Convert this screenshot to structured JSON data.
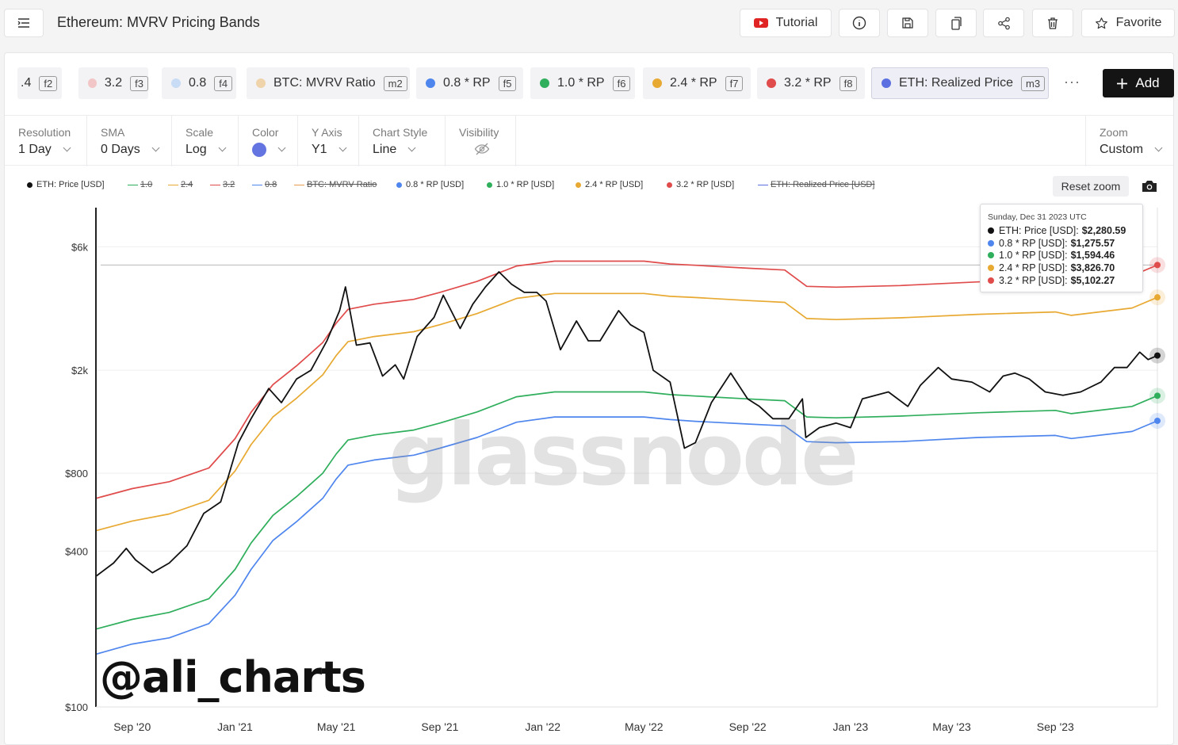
{
  "header": {
    "title": "Ethereum: MVRV Pricing Bands",
    "tutorial_label": "Tutorial",
    "favorite_label": "Favorite"
  },
  "metric_chips": [
    {
      "label": ".4",
      "key": "f2",
      "color": ""
    },
    {
      "label": "3.2",
      "key": "f3",
      "color": "#f2c6c6"
    },
    {
      "label": "0.8",
      "key": "f4",
      "color": "#c9dcf5"
    },
    {
      "label": "BTC: MVRV Ratio",
      "key": "m2",
      "color": "#efd3ab"
    },
    {
      "label": "0.8 * RP",
      "key": "f5",
      "color": "#4f86ee"
    },
    {
      "label": "1.0 * RP",
      "key": "f6",
      "color": "#2fae5c"
    },
    {
      "label": "2.4 * RP",
      "key": "f7",
      "color": "#e8a932"
    },
    {
      "label": "3.2 * RP",
      "key": "f8",
      "color": "#e04b4b"
    },
    {
      "label": "ETH: Realized Price",
      "key": "m3",
      "color": "#5c6fe0"
    }
  ],
  "more_label": "···",
  "add_label": "Add",
  "controls": {
    "resolution": {
      "label": "Resolution",
      "value": "1 Day"
    },
    "sma": {
      "label": "SMA",
      "value": "0 Days"
    },
    "scale": {
      "label": "Scale",
      "value": "Log"
    },
    "color": {
      "label": "Color",
      "value": "#6474e0"
    },
    "yaxis": {
      "label": "Y Axis",
      "value": "Y1"
    },
    "chart_style": {
      "label": "Chart Style",
      "value": "Line"
    },
    "visibility": {
      "label": "Visibility"
    },
    "zoom": {
      "label": "Zoom",
      "value": "Custom"
    }
  },
  "legend": [
    {
      "label": "ETH: Price [USD]",
      "color": "#111111",
      "enabled": true
    },
    {
      "label": "1.0",
      "color": "#2fae5c",
      "enabled": false
    },
    {
      "label": "2.4",
      "color": "#e8a932",
      "enabled": false
    },
    {
      "label": "3.2",
      "color": "#e04b4b",
      "enabled": false
    },
    {
      "label": "0.8",
      "color": "#4f86ee",
      "enabled": false
    },
    {
      "label": "BTC: MVRV Ratio",
      "color": "#e8a050",
      "enabled": false
    },
    {
      "label": "0.8 * RP [USD]",
      "color": "#4f86ee",
      "enabled": true
    },
    {
      "label": "1.0 * RP [USD]",
      "color": "#2fae5c",
      "enabled": true
    },
    {
      "label": "2.4 * RP [USD]",
      "color": "#e8a932",
      "enabled": true
    },
    {
      "label": "3.2 * RP [USD]",
      "color": "#e04b4b",
      "enabled": true
    },
    {
      "label": "ETH: Realized Price [USD]",
      "color": "#5c6fe0",
      "enabled": false
    }
  ],
  "reset_zoom_label": "Reset zoom",
  "tooltip": {
    "date": "Sunday, Dec 31 2023 UTC",
    "rows": [
      {
        "name": "ETH: Price [USD]:",
        "value": "$2,280.59",
        "color": "#111111"
      },
      {
        "name": "0.8 * RP [USD]:",
        "value": "$1,275.57",
        "color": "#4f86ee"
      },
      {
        "name": "1.0 * RP [USD]:",
        "value": "$1,594.46",
        "color": "#2fae5c"
      },
      {
        "name": "2.4 * RP [USD]:",
        "value": "$3,826.70",
        "color": "#e8a932"
      },
      {
        "name": "3.2 * RP [USD]:",
        "value": "$5,102.27",
        "color": "#e04b4b"
      }
    ]
  },
  "watermark": "glassnode",
  "handle": "@ali_charts",
  "chart_data": {
    "type": "line",
    "scale": "log",
    "ylim": [
      100,
      8500
    ],
    "y_ticks": [
      {
        "value": 100,
        "label": "$100"
      },
      {
        "value": 400,
        "label": "$400"
      },
      {
        "value": 800,
        "label": "$800"
      },
      {
        "value": 2000,
        "label": "$2k"
      },
      {
        "value": 6000,
        "label": "$6k"
      }
    ],
    "x_ticks": [
      {
        "date": "2020-09-01",
        "label": "Sep '20"
      },
      {
        "date": "2021-01-01",
        "label": "Jan '21"
      },
      {
        "date": "2021-05-01",
        "label": "May '21"
      },
      {
        "date": "2021-09-01",
        "label": "Sep '21"
      },
      {
        "date": "2022-01-01",
        "label": "Jan '22"
      },
      {
        "date": "2022-05-01",
        "label": "May '22"
      },
      {
        "date": "2022-09-01",
        "label": "Sep '22"
      },
      {
        "date": "2023-01-01",
        "label": "Jan '23"
      },
      {
        "date": "2023-05-01",
        "label": "May '23"
      },
      {
        "date": "2023-09-01",
        "label": "Sep '23"
      }
    ],
    "xlim": [
      "2020-07-20",
      "2023-12-31"
    ],
    "crosshair_value": 5102.27,
    "series": [
      {
        "name": "ETH: Price [USD]",
        "color": "#111111",
        "points": [
          [
            "2020-07-20",
            320
          ],
          [
            "2020-08-10",
            360
          ],
          [
            "2020-08-25",
            410
          ],
          [
            "2020-09-05",
            370
          ],
          [
            "2020-09-25",
            330
          ],
          [
            "2020-10-15",
            360
          ],
          [
            "2020-11-05",
            420
          ],
          [
            "2020-11-25",
            560
          ],
          [
            "2020-12-15",
            620
          ],
          [
            "2021-01-05",
            1050
          ],
          [
            "2021-01-20",
            1300
          ],
          [
            "2021-02-10",
            1700
          ],
          [
            "2021-02-25",
            1500
          ],
          [
            "2021-03-15",
            1850
          ],
          [
            "2021-04-01",
            2000
          ],
          [
            "2021-04-20",
            2600
          ],
          [
            "2021-05-05",
            3400
          ],
          [
            "2021-05-12",
            4200
          ],
          [
            "2021-05-25",
            2500
          ],
          [
            "2021-06-10",
            2550
          ],
          [
            "2021-06-25",
            1900
          ],
          [
            "2021-07-10",
            2100
          ],
          [
            "2021-07-20",
            1850
          ],
          [
            "2021-08-05",
            2700
          ],
          [
            "2021-08-25",
            3200
          ],
          [
            "2021-09-05",
            3900
          ],
          [
            "2021-09-25",
            2900
          ],
          [
            "2021-10-10",
            3600
          ],
          [
            "2021-10-25",
            4200
          ],
          [
            "2021-11-10",
            4800
          ],
          [
            "2021-11-25",
            4300
          ],
          [
            "2021-12-10",
            4000
          ],
          [
            "2021-12-25",
            4000
          ],
          [
            "2022-01-05",
            3700
          ],
          [
            "2022-01-22",
            2400
          ],
          [
            "2022-02-10",
            3100
          ],
          [
            "2022-02-24",
            2600
          ],
          [
            "2022-03-10",
            2600
          ],
          [
            "2022-04-01",
            3400
          ],
          [
            "2022-04-15",
            3000
          ],
          [
            "2022-05-01",
            2800
          ],
          [
            "2022-05-12",
            2000
          ],
          [
            "2022-06-01",
            1800
          ],
          [
            "2022-06-18",
            1000
          ],
          [
            "2022-07-01",
            1050
          ],
          [
            "2022-07-20",
            1500
          ],
          [
            "2022-08-12",
            1950
          ],
          [
            "2022-09-01",
            1550
          ],
          [
            "2022-09-15",
            1450
          ],
          [
            "2022-10-01",
            1300
          ],
          [
            "2022-10-20",
            1300
          ],
          [
            "2022-11-05",
            1550
          ],
          [
            "2022-11-09",
            1100
          ],
          [
            "2022-11-25",
            1200
          ],
          [
            "2022-12-15",
            1250
          ],
          [
            "2023-01-01",
            1200
          ],
          [
            "2023-01-15",
            1550
          ],
          [
            "2023-02-15",
            1650
          ],
          [
            "2023-03-10",
            1450
          ],
          [
            "2023-03-25",
            1750
          ],
          [
            "2023-04-15",
            2050
          ],
          [
            "2023-05-01",
            1850
          ],
          [
            "2023-05-25",
            1800
          ],
          [
            "2023-06-15",
            1650
          ],
          [
            "2023-07-01",
            1900
          ],
          [
            "2023-07-15",
            1950
          ],
          [
            "2023-08-01",
            1850
          ],
          [
            "2023-08-20",
            1650
          ],
          [
            "2023-09-10",
            1600
          ],
          [
            "2023-10-01",
            1650
          ],
          [
            "2023-10-25",
            1800
          ],
          [
            "2023-11-10",
            2050
          ],
          [
            "2023-11-25",
            2050
          ],
          [
            "2023-12-10",
            2350
          ],
          [
            "2023-12-20",
            2200
          ],
          [
            "2023-12-31",
            2280.59
          ]
        ]
      },
      {
        "name": "0.8 * RP [USD]",
        "color": "#4f86ee",
        "points": [
          [
            "2020-07-20",
            160
          ],
          [
            "2020-09-01",
            175
          ],
          [
            "2020-10-15",
            185
          ],
          [
            "2020-12-01",
            210
          ],
          [
            "2021-01-01",
            270
          ],
          [
            "2021-01-20",
            340
          ],
          [
            "2021-02-15",
            440
          ],
          [
            "2021-03-15",
            520
          ],
          [
            "2021-04-15",
            640
          ],
          [
            "2021-05-01",
            760
          ],
          [
            "2021-05-15",
            860
          ],
          [
            "2021-06-15",
            900
          ],
          [
            "2021-08-01",
            940
          ],
          [
            "2021-09-01",
            1000
          ],
          [
            "2021-10-15",
            1100
          ],
          [
            "2021-12-01",
            1260
          ],
          [
            "2022-01-15",
            1320
          ],
          [
            "2022-03-01",
            1320
          ],
          [
            "2022-05-01",
            1320
          ],
          [
            "2022-06-01",
            1290
          ],
          [
            "2022-07-01",
            1270
          ],
          [
            "2022-09-01",
            1240
          ],
          [
            "2022-10-15",
            1220
          ],
          [
            "2022-11-10",
            1060
          ],
          [
            "2022-12-15",
            1050
          ],
          [
            "2023-03-01",
            1060
          ],
          [
            "2023-06-01",
            1100
          ],
          [
            "2023-09-01",
            1120
          ],
          [
            "2023-09-20",
            1090
          ],
          [
            "2023-12-01",
            1160
          ],
          [
            "2023-12-31",
            1275.57
          ]
        ]
      },
      {
        "name": "1.0 * RP [USD]",
        "color": "#2fae5c",
        "points": [
          [
            "2020-07-20",
            200
          ],
          [
            "2020-09-01",
            218
          ],
          [
            "2020-10-15",
            232
          ],
          [
            "2020-12-01",
            262
          ],
          [
            "2021-01-01",
            340
          ],
          [
            "2021-01-20",
            430
          ],
          [
            "2021-02-15",
            550
          ],
          [
            "2021-03-15",
            650
          ],
          [
            "2021-04-15",
            800
          ],
          [
            "2021-05-01",
            950
          ],
          [
            "2021-05-15",
            1075
          ],
          [
            "2021-06-15",
            1125
          ],
          [
            "2021-08-01",
            1175
          ],
          [
            "2021-09-01",
            1250
          ],
          [
            "2021-10-15",
            1380
          ],
          [
            "2021-12-01",
            1580
          ],
          [
            "2022-01-15",
            1650
          ],
          [
            "2022-03-01",
            1650
          ],
          [
            "2022-05-01",
            1650
          ],
          [
            "2022-06-01",
            1610
          ],
          [
            "2022-07-01",
            1590
          ],
          [
            "2022-09-01",
            1550
          ],
          [
            "2022-10-15",
            1525
          ],
          [
            "2022-11-10",
            1320
          ],
          [
            "2022-12-15",
            1310
          ],
          [
            "2023-03-01",
            1330
          ],
          [
            "2023-06-01",
            1370
          ],
          [
            "2023-09-01",
            1400
          ],
          [
            "2023-09-20",
            1360
          ],
          [
            "2023-12-01",
            1450
          ],
          [
            "2023-12-31",
            1594.46
          ]
        ]
      },
      {
        "name": "2.4 * RP [USD]",
        "color": "#e8a932",
        "points": [
          [
            "2020-07-20",
            480
          ],
          [
            "2020-09-01",
            523
          ],
          [
            "2020-10-15",
            557
          ],
          [
            "2020-12-01",
            629
          ],
          [
            "2021-01-01",
            816
          ],
          [
            "2021-01-20",
            1032
          ],
          [
            "2021-02-15",
            1320
          ],
          [
            "2021-03-15",
            1560
          ],
          [
            "2021-04-15",
            1920
          ],
          [
            "2021-05-01",
            2280
          ],
          [
            "2021-05-15",
            2580
          ],
          [
            "2021-06-15",
            2700
          ],
          [
            "2021-08-01",
            2820
          ],
          [
            "2021-09-01",
            3000
          ],
          [
            "2021-10-15",
            3310
          ],
          [
            "2021-12-01",
            3790
          ],
          [
            "2022-01-15",
            3960
          ],
          [
            "2022-03-01",
            3960
          ],
          [
            "2022-05-01",
            3960
          ],
          [
            "2022-06-01",
            3860
          ],
          [
            "2022-07-01",
            3820
          ],
          [
            "2022-09-01",
            3720
          ],
          [
            "2022-10-15",
            3660
          ],
          [
            "2022-11-10",
            3170
          ],
          [
            "2022-12-15",
            3140
          ],
          [
            "2023-03-01",
            3190
          ],
          [
            "2023-06-01",
            3290
          ],
          [
            "2023-09-01",
            3360
          ],
          [
            "2023-09-20",
            3260
          ],
          [
            "2023-12-01",
            3480
          ],
          [
            "2023-12-31",
            3826.7
          ]
        ]
      },
      {
        "name": "3.2 * RP [USD]",
        "color": "#e04b4b",
        "points": [
          [
            "2020-07-20",
            640
          ],
          [
            "2020-09-01",
            698
          ],
          [
            "2020-10-15",
            742
          ],
          [
            "2020-12-01",
            838
          ],
          [
            "2021-01-01",
            1088
          ],
          [
            "2021-01-20",
            1376
          ],
          [
            "2021-02-15",
            1760
          ],
          [
            "2021-03-15",
            2080
          ],
          [
            "2021-04-15",
            2560
          ],
          [
            "2021-05-01",
            3040
          ],
          [
            "2021-05-15",
            3440
          ],
          [
            "2021-06-15",
            3600
          ],
          [
            "2021-08-01",
            3760
          ],
          [
            "2021-09-01",
            4000
          ],
          [
            "2021-10-15",
            4410
          ],
          [
            "2021-12-01",
            5060
          ],
          [
            "2022-01-15",
            5280
          ],
          [
            "2022-03-01",
            5280
          ],
          [
            "2022-05-01",
            5280
          ],
          [
            "2022-06-01",
            5150
          ],
          [
            "2022-07-01",
            5090
          ],
          [
            "2022-09-01",
            4960
          ],
          [
            "2022-10-15",
            4880
          ],
          [
            "2022-11-10",
            4220
          ],
          [
            "2022-12-15",
            4190
          ],
          [
            "2023-03-01",
            4250
          ],
          [
            "2023-06-01",
            4390
          ],
          [
            "2023-09-01",
            4480
          ],
          [
            "2023-09-20",
            4350
          ],
          [
            "2023-12-01",
            4640
          ],
          [
            "2023-12-31",
            5102.27
          ]
        ]
      }
    ]
  }
}
